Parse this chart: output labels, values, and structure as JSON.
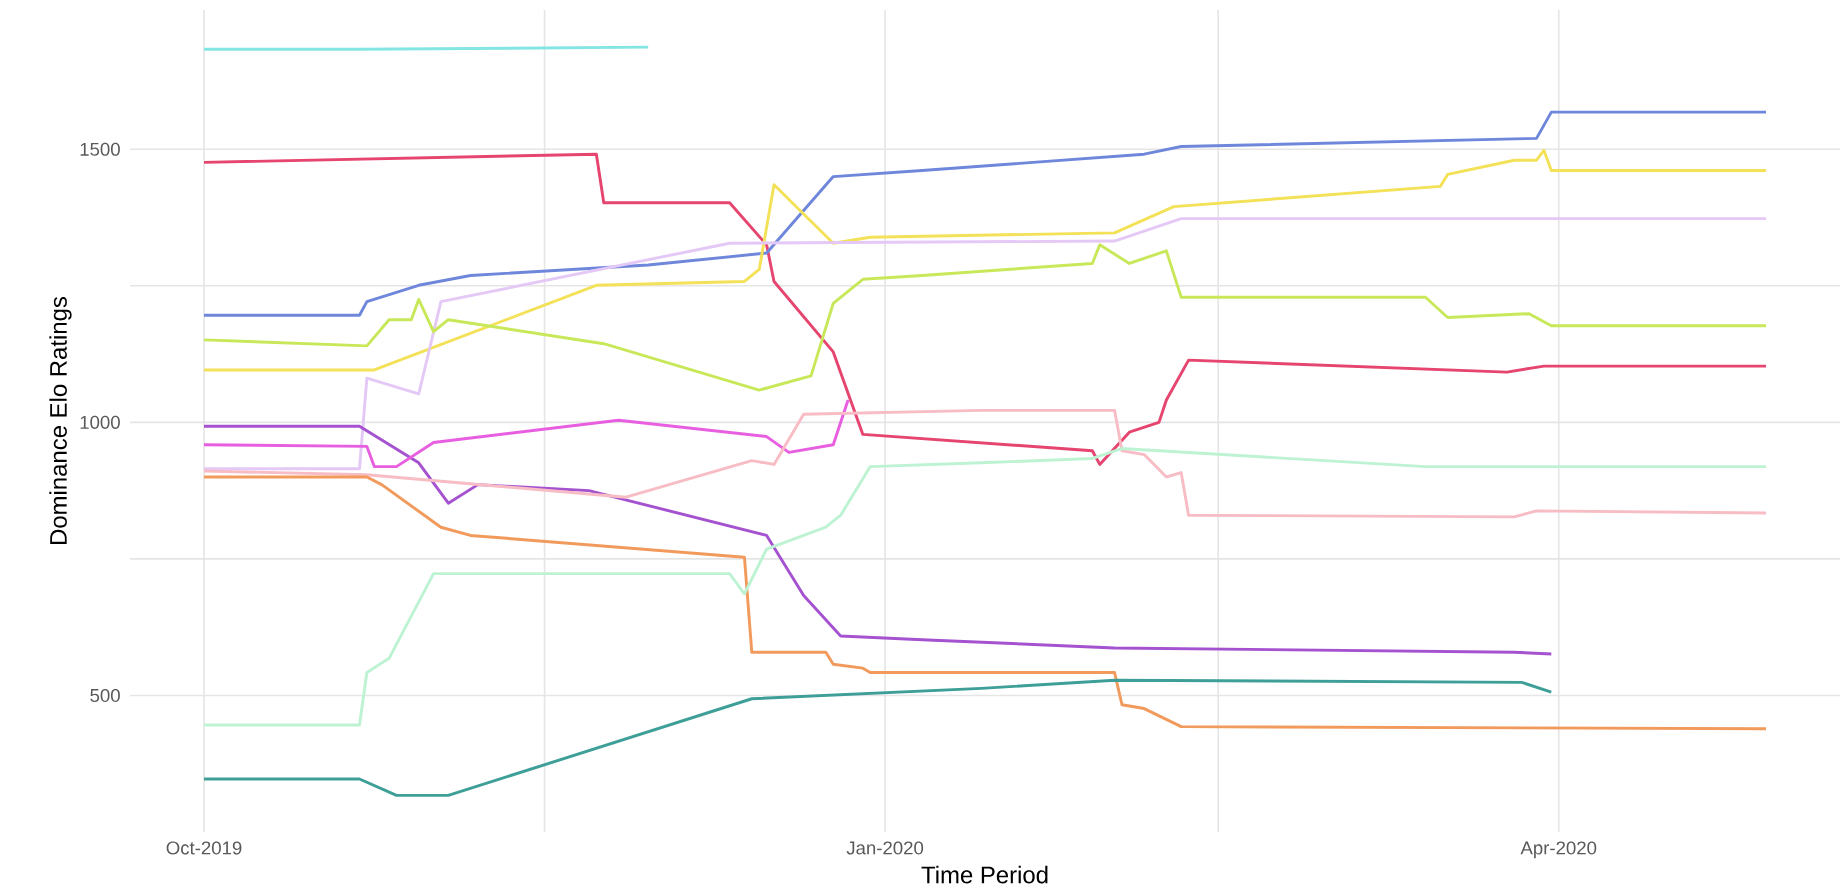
{
  "chart_data": {
    "type": "line",
    "xlabel": "Time Period",
    "ylabel": "Dominance Elo Ratings",
    "xlim": [
      "2019-09-21",
      "2020-05-09"
    ],
    "ylim": [
      250,
      1755
    ],
    "xticks": [
      {
        "value": "2019-10-01",
        "label": "Oct-2019"
      },
      {
        "value": "2019-11-16",
        "label": null
      },
      {
        "value": "2020-01-01",
        "label": "Jan-2020"
      },
      {
        "value": "2020-02-15",
        "label": null
      },
      {
        "value": "2020-04-01",
        "label": "Apr-2020"
      }
    ],
    "yticks": [
      500,
      {
        "value": 750,
        "label": null
      },
      1000,
      {
        "value": 1250,
        "label": null
      },
      1500
    ],
    "grid": true,
    "line_style": "solid",
    "series": [
      {
        "color": "#84e6e3",
        "x": [
          "2019-10-01",
          "2019-10-22",
          "2019-11-30"
        ],
        "values": [
          1683,
          1683,
          1687
        ]
      },
      {
        "color": "#e5456f",
        "x": [
          "2019-10-01",
          "2019-11-23",
          "2019-11-24",
          "2019-12-11",
          "2019-12-16",
          "2019-12-17",
          "2019-12-25",
          "2019-12-29",
          "2020-01-29",
          "2020-01-30",
          "2020-02-03",
          "2020-02-07",
          "2020-02-08",
          "2020-02-11",
          "2020-03-25",
          "2020-03-30",
          "2020-04-29"
        ],
        "values": [
          1476,
          1491,
          1402,
          1402,
          1325,
          1258,
          1129,
          978,
          948,
          923,
          982,
          1000,
          1041,
          1114,
          1092,
          1103,
          1103
        ]
      },
      {
        "color": "#6f87db",
        "x": [
          "2019-10-01",
          "2019-10-22",
          "2019-10-23",
          "2019-10-30",
          "2019-11-06",
          "2019-11-30",
          "2019-12-16",
          "2019-12-25",
          "2020-01-06",
          "2020-02-05",
          "2020-02-10",
          "2020-03-29",
          "2020-03-31",
          "2020-04-29"
        ],
        "values": [
          1196,
          1196,
          1221,
          1251,
          1269,
          1288,
          1310,
          1450,
          1461,
          1491,
          1505,
          1520,
          1568,
          1568
        ]
      },
      {
        "color": "#f3e158",
        "x": [
          "2019-10-01",
          "2019-10-24",
          "2019-11-23",
          "2019-12-13",
          "2019-12-15",
          "2019-12-17",
          "2019-12-25",
          "2019-12-30",
          "2020-02-01",
          "2020-02-09",
          "2020-03-16",
          "2020-03-17",
          "2020-03-26",
          "2020-03-29",
          "2020-03-30",
          "2020-03-31",
          "2020-04-29"
        ],
        "values": [
          1096,
          1096,
          1251,
          1258,
          1280,
          1435,
          1328,
          1339,
          1347,
          1395,
          1432,
          1454,
          1480,
          1480,
          1498,
          1461,
          1461
        ]
      },
      {
        "color": "#e4c8f5",
        "x": [
          "2019-10-01",
          "2019-10-22",
          "2019-10-23",
          "2019-10-30",
          "2019-11-02",
          "2019-12-11",
          "2020-02-01",
          "2020-02-10",
          "2020-04-29"
        ],
        "values": [
          915,
          915,
          1081,
          1052,
          1221,
          1328,
          1332,
          1373,
          1373
        ]
      },
      {
        "color": "#c8e85a",
        "x": [
          "2019-10-01",
          "2019-10-23",
          "2019-10-26",
          "2019-10-29",
          "2019-10-30",
          "2019-11-01",
          "2019-11-03",
          "2019-11-24",
          "2019-12-15",
          "2019-12-22",
          "2019-12-25",
          "2019-12-29",
          "2020-01-06",
          "2020-01-29",
          "2020-01-30",
          "2020-02-03",
          "2020-02-08",
          "2020-02-10",
          "2020-03-14",
          "2020-03-17",
          "2020-03-28",
          "2020-03-31",
          "2020-04-29"
        ],
        "values": [
          1151,
          1140,
          1188,
          1188,
          1225,
          1166,
          1188,
          1144,
          1059,
          1085,
          1218,
          1262,
          1269,
          1291,
          1325,
          1291,
          1314,
          1229,
          1229,
          1192,
          1199,
          1177,
          1177
        ]
      },
      {
        "color": "#a552d0",
        "x": [
          "2019-10-01",
          "2019-10-22",
          "2019-10-30",
          "2019-11-03",
          "2019-11-07",
          "2019-11-22",
          "2019-12-16",
          "2019-12-21",
          "2019-12-26",
          "2020-01-06",
          "2020-02-01",
          "2020-03-26",
          "2020-03-31"
        ],
        "values": [
          993,
          993,
          926,
          852,
          886,
          875,
          793,
          683,
          609,
          602,
          587,
          579,
          576
        ]
      },
      {
        "color": "#e85ee0",
        "x": [
          "2019-10-01",
          "2019-10-23",
          "2019-10-24",
          "2019-10-27",
          "2019-11-01",
          "2019-11-26",
          "2019-12-16",
          "2019-12-19",
          "2019-12-25",
          "2019-12-27"
        ],
        "values": [
          959,
          956,
          919,
          919,
          963,
          1004,
          974,
          945,
          959,
          1041
        ]
      },
      {
        "color": "#f7bcc4",
        "x": [
          "2019-10-01",
          "2019-10-23",
          "2019-11-27",
          "2019-12-14",
          "2019-12-17",
          "2019-12-21",
          "2020-01-14",
          "2020-02-01",
          "2020-02-02",
          "2020-02-05",
          "2020-02-08",
          "2020-02-10",
          "2020-02-11",
          "2020-03-26",
          "2020-03-29",
          "2020-04-29"
        ],
        "values": [
          911,
          904,
          863,
          930,
          923,
          1015,
          1022,
          1022,
          948,
          941,
          900,
          908,
          830,
          827,
          838,
          834
        ]
      },
      {
        "color": "#f29a5c",
        "x": [
          "2019-10-01",
          "2019-10-23",
          "2019-10-25",
          "2019-11-02",
          "2019-11-06",
          "2019-12-13",
          "2019-12-14",
          "2019-12-24",
          "2019-12-25",
          "2019-12-29",
          "2019-12-30",
          "2020-02-01",
          "2020-02-02",
          "2020-02-05",
          "2020-02-10",
          "2020-04-29"
        ],
        "values": [
          900,
          900,
          886,
          808,
          793,
          753,
          579,
          579,
          557,
          550,
          542,
          542,
          483,
          476,
          443,
          439
        ]
      },
      {
        "color": "#bdf3d3",
        "x": [
          "2019-10-01",
          "2019-10-22",
          "2019-10-23",
          "2019-10-26",
          "2019-11-01",
          "2019-12-11",
          "2019-12-13",
          "2019-12-16",
          "2019-12-24",
          "2019-12-26",
          "2019-12-30",
          "2020-01-14",
          "2020-01-29",
          "2020-02-02",
          "2020-03-14",
          "2020-04-29"
        ],
        "values": [
          446,
          446,
          542,
          568,
          723,
          723,
          686,
          768,
          808,
          830,
          919,
          926,
          934,
          952,
          919,
          919
        ]
      },
      {
        "color": "#3d9f97",
        "x": [
          "2019-10-01",
          "2019-10-22",
          "2019-10-27",
          "2019-11-03",
          "2019-12-14",
          "2020-01-14",
          "2020-02-01",
          "2020-03-27",
          "2020-03-31"
        ],
        "values": [
          347,
          347,
          317,
          317,
          494,
          513,
          528,
          524,
          506
        ]
      }
    ]
  }
}
